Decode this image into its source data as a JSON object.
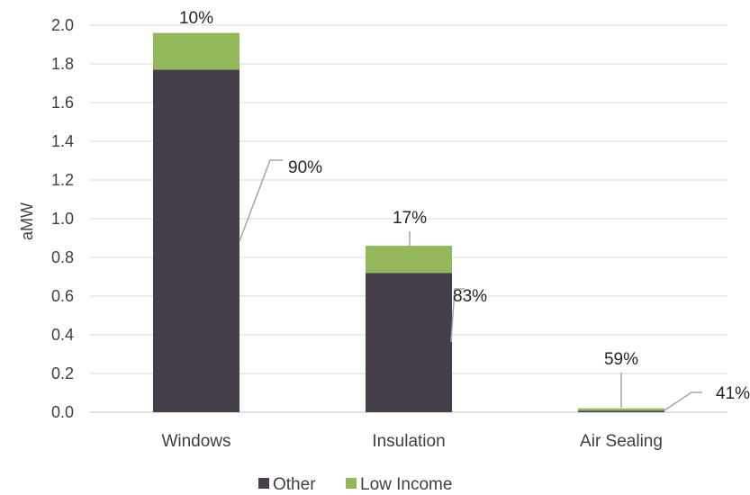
{
  "chart_data": {
    "type": "bar",
    "stacked": true,
    "title": "",
    "xlabel": "",
    "ylabel": "aMW",
    "ylim": [
      0,
      2.0
    ],
    "yticks": [
      "0.0",
      "0.2",
      "0.4",
      "0.6",
      "0.8",
      "1.0",
      "1.2",
      "1.4",
      "1.6",
      "1.8",
      "2.0"
    ],
    "grid": true,
    "legend": "bottom",
    "categories": [
      "Windows",
      "Insulation",
      "Air Sealing"
    ],
    "series": [
      {
        "name": "Other",
        "color": "#463f4b",
        "values": [
          1.77,
          0.72,
          0.008
        ],
        "labels": [
          "90%",
          "83%",
          "41%"
        ]
      },
      {
        "name": "Low Income",
        "color": "#92b85a",
        "values": [
          0.19,
          0.14,
          0.012
        ],
        "labels": [
          "10%",
          "17%",
          "59%"
        ]
      }
    ]
  }
}
